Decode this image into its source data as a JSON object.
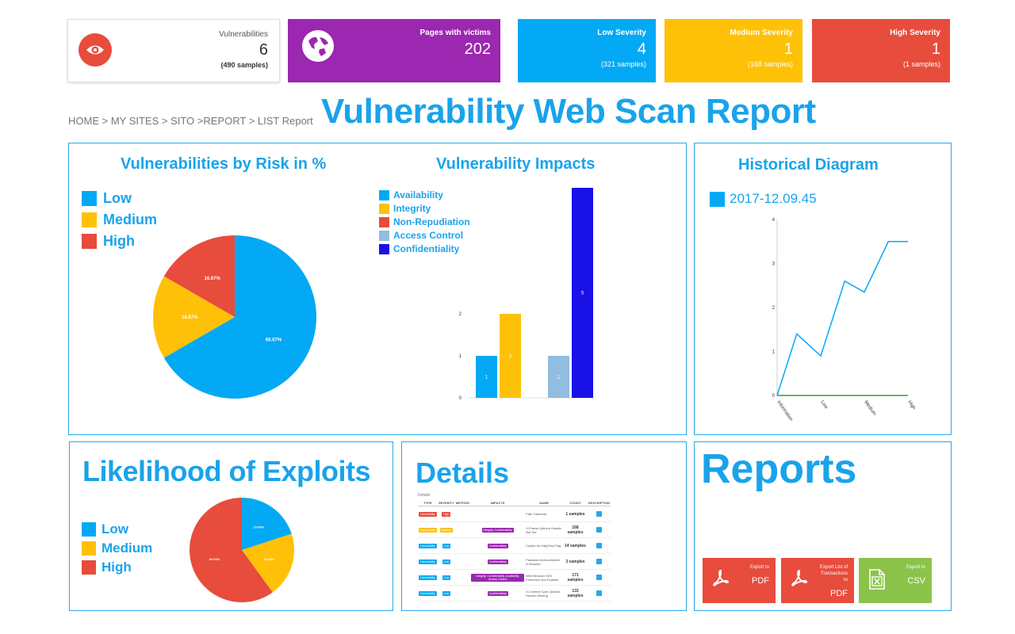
{
  "stats": {
    "vuln": {
      "label": "Vulnerabilities",
      "value": "6",
      "samples": "(490 samples)"
    },
    "pages": {
      "label": "Pages with victims",
      "value": "202"
    },
    "low": {
      "label": "Low Severity",
      "value": "4",
      "samples": "(321 samples)",
      "color": "#03a9f4"
    },
    "medium": {
      "label": "Medium Severity",
      "value": "1",
      "samples": "(168 samples)",
      "color": "#ffc107"
    },
    "high": {
      "label": "High Severity",
      "value": "1",
      "samples": "(1 samples)",
      "color": "#e74c3c"
    },
    "purple": "#9c27b0"
  },
  "breadcrumb": "HOME > MY SITES > SITO >REPORT > LIST Report",
  "page_title": "Vulnerability Web Scan Report",
  "risk": {
    "title": "Vulnerabilities by Risk in %",
    "legend": [
      "Low",
      "Medium",
      "High"
    ]
  },
  "impacts": {
    "title": "Vulnerability Impacts",
    "legend": [
      "Availability",
      "Integrity",
      "Non-Repudiation",
      "Access Control",
      "Confidentiality"
    ]
  },
  "history": {
    "title": "Historical Diagram",
    "legend": "2017-12.09.45"
  },
  "exploits": {
    "title": "Likelihood of Exploits",
    "legend": [
      "Low",
      "Medium",
      "High"
    ]
  },
  "details": {
    "title": "Details",
    "subtitle": "Details",
    "columns": [
      "TYPE",
      "SEVERITY",
      "METHOD",
      "IMPACTS",
      "NAME",
      "COUNT",
      "DESCRIPTION"
    ],
    "rows": [
      {
        "type": "Vulnerability",
        "sev": "High",
        "sev_color": "#e74c3c",
        "type_color": "#e74c3c",
        "impacts": "",
        "name": "Path Traversal",
        "count": "1 samples"
      },
      {
        "type": "Vulnerability",
        "sev": "Medium",
        "sev_color": "#ffc107",
        "type_color": "#ffc107",
        "impacts": "Integrity, Confidentiality",
        "name": "X-Frame-Options Header Not Set",
        "count": "168 samples"
      },
      {
        "type": "Vulnerability",
        "sev": "Low",
        "sev_color": "#03a9f4",
        "type_color": "#03a9f4",
        "impacts": "Confidentiality",
        "name": "Cookie No HttpOnly Flag",
        "count": "14 samples"
      },
      {
        "type": "Vulnerability",
        "sev": "Low",
        "sev_color": "#03a9f4",
        "type_color": "#03a9f4",
        "impacts": "Confidentiality",
        "name": "Password Autocomplete in Browser",
        "count": "3 samples"
      },
      {
        "type": "Vulnerability",
        "sev": "Low",
        "sev_color": "#03a9f4",
        "type_color": "#03a9f4",
        "impacts": "Integrity, Confidentiality, Availability, Access Control",
        "name": "Web Browser XSS Protection Not Enabled",
        "count": "171 samples"
      },
      {
        "type": "Vulnerability",
        "sev": "Low",
        "sev_color": "#03a9f4",
        "type_color": "#03a9f4",
        "impacts": "Confidentiality",
        "name": "X-Content-Type-Options Header Missing",
        "count": "133 samples"
      }
    ]
  },
  "reports": {
    "title": "Reports",
    "buttons": [
      {
        "small": "Export to",
        "big": "PDF",
        "color": "#e74c3c"
      },
      {
        "small": "Export List of Transactions to",
        "big": "PDF",
        "color": "#e74c3c"
      },
      {
        "small": "Export to",
        "big": "CSV",
        "color": "#8bc34a"
      }
    ]
  },
  "icons": {
    "eye": "eye-icon",
    "globe": "globe-icon",
    "pdf": "pdf-icon",
    "excel": "excel-icon"
  },
  "chart_data": [
    {
      "type": "pie",
      "title": "Vulnerabilities by Risk in %",
      "labels": [
        "Low",
        "Medium",
        "High"
      ],
      "values": [
        66.67,
        16.67,
        16.67
      ],
      "value_labels": [
        "66.67%",
        "16.67%",
        "16.67%"
      ],
      "colors": [
        "#03a9f4",
        "#ffc107",
        "#e74c3c"
      ],
      "legend": "top-left"
    },
    {
      "type": "bar",
      "title": "Vulnerability Impacts",
      "series": [
        {
          "name": "Availability",
          "color": "#03a9f4",
          "values": [
            1
          ]
        },
        {
          "name": "Integrity",
          "color": "#ffc107",
          "values": [
            2
          ]
        },
        {
          "name": "Non-Repudiation",
          "color": "#e74c3c",
          "values": [
            0
          ]
        },
        {
          "name": "Access Control",
          "color": "#90bde0",
          "values": [
            1
          ]
        },
        {
          "name": "Confidentiality",
          "color": "#1a10e8",
          "values": [
            5
          ]
        }
      ],
      "ylim": [
        0,
        5
      ],
      "y_ticks": [
        "0",
        "1",
        "2"
      ],
      "legend": "top-left"
    },
    {
      "type": "line",
      "title": "Historical Diagram",
      "categories": [
        "Information",
        "Low",
        "Medium",
        "High"
      ],
      "x": [
        0,
        0.45,
        1,
        1.55,
        2,
        2.55,
        3
      ],
      "series": [
        {
          "name": "2017-12.09.45",
          "color": "#03a9f4",
          "values": [
            0,
            1.4,
            0.9,
            2.6,
            2.35,
            3.5,
            3.5
          ]
        },
        {
          "name": "",
          "color": "#2e9e3e",
          "values": [
            0,
            0,
            0,
            0,
            0,
            0,
            0
          ]
        }
      ],
      "ylim": [
        0,
        4
      ],
      "y_ticks": [
        "0",
        "1",
        "2",
        "3",
        "4"
      ],
      "legend": "top-left"
    },
    {
      "type": "pie",
      "title": "Likelihood of Exploits",
      "labels": [
        "Low",
        "Medium",
        "High"
      ],
      "values": [
        20,
        20,
        60
      ],
      "value_labels": [
        "20.00%",
        "20.00%",
        "60.00%"
      ],
      "colors": [
        "#03a9f4",
        "#ffc107",
        "#e74c3c"
      ],
      "legend": "left"
    }
  ]
}
